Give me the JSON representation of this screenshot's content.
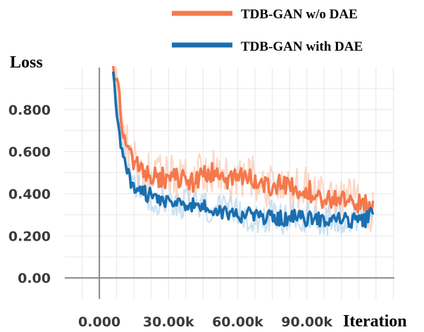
{
  "chart_data": {
    "type": "line",
    "title": "",
    "xlabel": "Iteration",
    "ylabel": "Loss",
    "x_ticks": [
      {
        "value": 0,
        "label": "0.000"
      },
      {
        "value": 30000,
        "label": "30.00k"
      },
      {
        "value": 60000,
        "label": "60.00k"
      },
      {
        "value": 90000,
        "label": "90.00k"
      }
    ],
    "y_ticks": [
      {
        "value": 0.0,
        "label": "0.00"
      },
      {
        "value": 0.2,
        "label": "0.200"
      },
      {
        "value": 0.4,
        "label": "0.400"
      },
      {
        "value": 0.6,
        "label": "0.600"
      },
      {
        "value": 0.8,
        "label": "0.800"
      }
    ],
    "xlim": [
      -15000,
      128000
    ],
    "ylim": [
      -0.1,
      1.0
    ],
    "grid": true,
    "legend_position": "top-right",
    "series": [
      {
        "name": "TDB-GAN w/o DAE",
        "color": "#f4794c",
        "raw_color": "#f9c9b4",
        "x": [
          6000,
          8000,
          10000,
          12000,
          14000,
          16000,
          20000,
          25000,
          30000,
          35000,
          40000,
          45000,
          50000,
          55000,
          60000,
          65000,
          70000,
          75000,
          80000,
          85000,
          90000,
          95000,
          100000,
          105000,
          110000,
          115000,
          119000
        ],
        "y": [
          1.02,
          0.9,
          0.72,
          0.62,
          0.56,
          0.53,
          0.5,
          0.48,
          0.47,
          0.48,
          0.45,
          0.5,
          0.5,
          0.46,
          0.47,
          0.48,
          0.45,
          0.44,
          0.44,
          0.42,
          0.42,
          0.39,
          0.37,
          0.37,
          0.36,
          0.35,
          0.32
        ]
      },
      {
        "name": "TDB-GAN with DAE",
        "color": "#1a6fb0",
        "raw_color": "#b9d7ee",
        "x": [
          6000,
          8000,
          10000,
          12000,
          14000,
          16000,
          20000,
          25000,
          30000,
          35000,
          40000,
          45000,
          50000,
          55000,
          60000,
          65000,
          70000,
          75000,
          80000,
          85000,
          90000,
          95000,
          100000,
          105000,
          110000,
          115000,
          119000
        ],
        "y": [
          0.97,
          0.75,
          0.6,
          0.52,
          0.45,
          0.43,
          0.4,
          0.38,
          0.37,
          0.36,
          0.35,
          0.34,
          0.32,
          0.31,
          0.3,
          0.3,
          0.29,
          0.29,
          0.28,
          0.29,
          0.28,
          0.28,
          0.28,
          0.28,
          0.27,
          0.27,
          0.32
        ]
      }
    ]
  }
}
